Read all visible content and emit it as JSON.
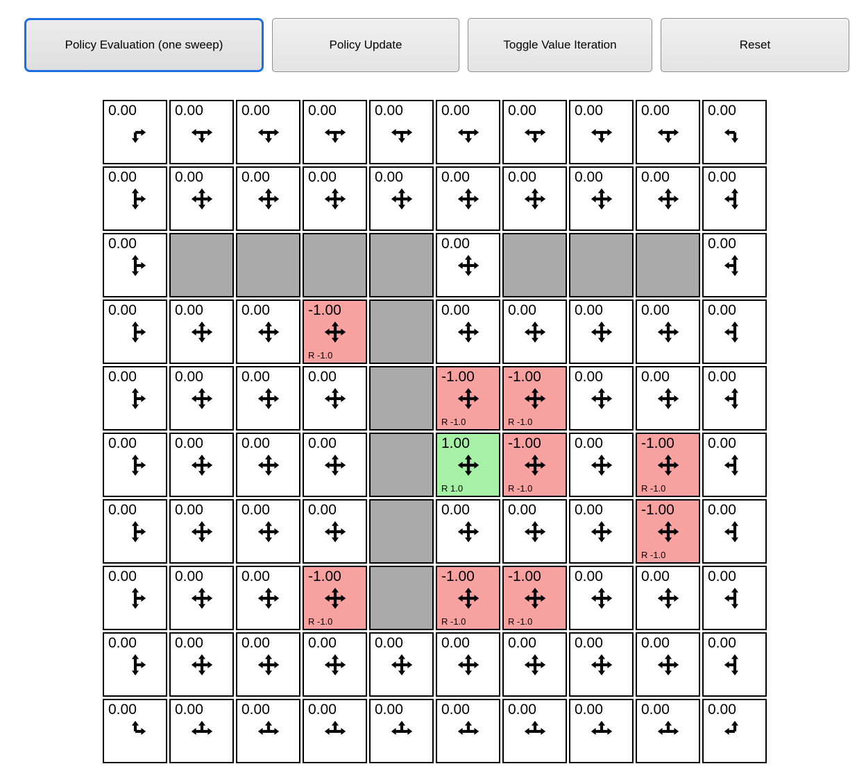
{
  "toolbar": {
    "active_border_color": "#1b6fe3",
    "buttons": [
      {
        "label": "Policy Evaluation (one sweep)",
        "active": true
      },
      {
        "label": "Policy Update",
        "active": false
      },
      {
        "label": "Toggle Value Iteration",
        "active": false
      },
      {
        "label": "Reset",
        "active": false
      }
    ]
  },
  "grid": {
    "rows": 10,
    "cols": 10,
    "colors": {
      "wall": "#aaaaaa",
      "negative": "#f8a1a1",
      "positive": "#a6f1a6",
      "border": "#000000"
    },
    "cells": [
      [
        {
          "v": "0.00",
          "a": "dr"
        },
        {
          "v": "0.00",
          "a": "ldr"
        },
        {
          "v": "0.00",
          "a": "ldr"
        },
        {
          "v": "0.00",
          "a": "ldr"
        },
        {
          "v": "0.00",
          "a": "ldr"
        },
        {
          "v": "0.00",
          "a": "ldr"
        },
        {
          "v": "0.00",
          "a": "ldr"
        },
        {
          "v": "0.00",
          "a": "ldr"
        },
        {
          "v": "0.00",
          "a": "ldr"
        },
        {
          "v": "0.00",
          "a": "ld"
        }
      ],
      [
        {
          "v": "0.00",
          "a": "udr"
        },
        {
          "v": "0.00",
          "a": "udlr"
        },
        {
          "v": "0.00",
          "a": "udlr"
        },
        {
          "v": "0.00",
          "a": "udlr"
        },
        {
          "v": "0.00",
          "a": "udlr"
        },
        {
          "v": "0.00",
          "a": "udlr"
        },
        {
          "v": "0.00",
          "a": "udlr"
        },
        {
          "v": "0.00",
          "a": "udlr"
        },
        {
          "v": "0.00",
          "a": "udlr"
        },
        {
          "v": "0.00",
          "a": "udl"
        }
      ],
      [
        {
          "v": "0.00",
          "a": "udr"
        },
        {
          "w": 1
        },
        {
          "w": 1
        },
        {
          "w": 1
        },
        {
          "w": 1
        },
        {
          "v": "0.00",
          "a": "udlr"
        },
        {
          "w": 1
        },
        {
          "w": 1
        },
        {
          "w": 1
        },
        {
          "v": "0.00",
          "a": "udl"
        }
      ],
      [
        {
          "v": "0.00",
          "a": "udr"
        },
        {
          "v": "0.00",
          "a": "udlr"
        },
        {
          "v": "0.00",
          "a": "udlr"
        },
        {
          "v": "-1.00",
          "a": "udlr",
          "bg": "red",
          "rw": "R -1.0"
        },
        {
          "w": 1
        },
        {
          "v": "0.00",
          "a": "udlr"
        },
        {
          "v": "0.00",
          "a": "udlr"
        },
        {
          "v": "0.00",
          "a": "udlr"
        },
        {
          "v": "0.00",
          "a": "udlr"
        },
        {
          "v": "0.00",
          "a": "udl"
        }
      ],
      [
        {
          "v": "0.00",
          "a": "udr"
        },
        {
          "v": "0.00",
          "a": "udlr"
        },
        {
          "v": "0.00",
          "a": "udlr"
        },
        {
          "v": "0.00",
          "a": "udlr"
        },
        {
          "w": 1
        },
        {
          "v": "-1.00",
          "a": "udlr",
          "bg": "red",
          "rw": "R -1.0"
        },
        {
          "v": "-1.00",
          "a": "udlr",
          "bg": "red",
          "rw": "R -1.0"
        },
        {
          "v": "0.00",
          "a": "udlr"
        },
        {
          "v": "0.00",
          "a": "udlr"
        },
        {
          "v": "0.00",
          "a": "udl"
        }
      ],
      [
        {
          "v": "0.00",
          "a": "udr"
        },
        {
          "v": "0.00",
          "a": "udlr"
        },
        {
          "v": "0.00",
          "a": "udlr"
        },
        {
          "v": "0.00",
          "a": "udlr"
        },
        {
          "w": 1
        },
        {
          "v": "1.00",
          "a": "udlr",
          "bg": "green",
          "rw": "R 1.0"
        },
        {
          "v": "-1.00",
          "a": "udlr",
          "bg": "red",
          "rw": "R -1.0"
        },
        {
          "v": "0.00",
          "a": "udlr"
        },
        {
          "v": "-1.00",
          "a": "udlr",
          "bg": "red",
          "rw": "R -1.0"
        },
        {
          "v": "0.00",
          "a": "udl"
        }
      ],
      [
        {
          "v": "0.00",
          "a": "udr"
        },
        {
          "v": "0.00",
          "a": "udlr"
        },
        {
          "v": "0.00",
          "a": "udlr"
        },
        {
          "v": "0.00",
          "a": "udlr"
        },
        {
          "w": 1
        },
        {
          "v": "0.00",
          "a": "udlr"
        },
        {
          "v": "0.00",
          "a": "udlr"
        },
        {
          "v": "0.00",
          "a": "udlr"
        },
        {
          "v": "-1.00",
          "a": "udlr",
          "bg": "red",
          "rw": "R -1.0"
        },
        {
          "v": "0.00",
          "a": "udl"
        }
      ],
      [
        {
          "v": "0.00",
          "a": "udr"
        },
        {
          "v": "0.00",
          "a": "udlr"
        },
        {
          "v": "0.00",
          "a": "udlr"
        },
        {
          "v": "-1.00",
          "a": "udlr",
          "bg": "red",
          "rw": "R -1.0"
        },
        {
          "w": 1
        },
        {
          "v": "-1.00",
          "a": "udlr",
          "bg": "red",
          "rw": "R -1.0"
        },
        {
          "v": "-1.00",
          "a": "udlr",
          "bg": "red",
          "rw": "R -1.0"
        },
        {
          "v": "0.00",
          "a": "udlr"
        },
        {
          "v": "0.00",
          "a": "udlr"
        },
        {
          "v": "0.00",
          "a": "udl"
        }
      ],
      [
        {
          "v": "0.00",
          "a": "udr"
        },
        {
          "v": "0.00",
          "a": "udlr"
        },
        {
          "v": "0.00",
          "a": "udlr"
        },
        {
          "v": "0.00",
          "a": "udlr"
        },
        {
          "v": "0.00",
          "a": "udlr"
        },
        {
          "v": "0.00",
          "a": "udlr"
        },
        {
          "v": "0.00",
          "a": "udlr"
        },
        {
          "v": "0.00",
          "a": "udlr"
        },
        {
          "v": "0.00",
          "a": "udlr"
        },
        {
          "v": "0.00",
          "a": "udl"
        }
      ],
      [
        {
          "v": "0.00",
          "a": "ur"
        },
        {
          "v": "0.00",
          "a": "ulr"
        },
        {
          "v": "0.00",
          "a": "ulr"
        },
        {
          "v": "0.00",
          "a": "ulr"
        },
        {
          "v": "0.00",
          "a": "ulr"
        },
        {
          "v": "0.00",
          "a": "ulr"
        },
        {
          "v": "0.00",
          "a": "ulr"
        },
        {
          "v": "0.00",
          "a": "ulr"
        },
        {
          "v": "0.00",
          "a": "ulr"
        },
        {
          "v": "0.00",
          "a": "ul"
        }
      ]
    ]
  }
}
